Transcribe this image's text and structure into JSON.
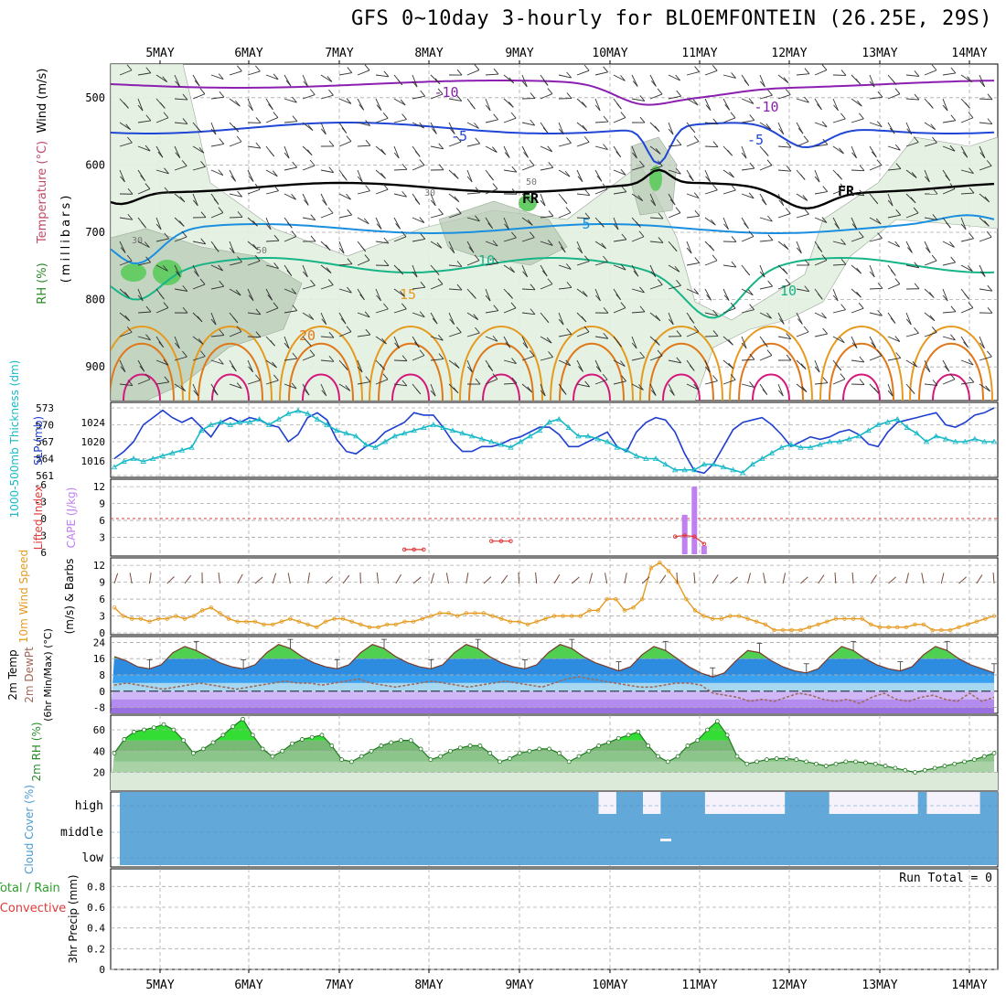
{
  "title": "GFS 0~10day 3-hourly for BLOEMFONTEIN (26.25E, 29S)",
  "chart_data": [
    {
      "panel": "upper-air",
      "type": "contour",
      "ylabel_parts": [
        "RH (%)",
        "Temperature (°C)",
        "Wind (m/s)"
      ],
      "ylabel_units": "(millibars)",
      "ylim": [
        950,
        450
      ],
      "yticks": [
        "500",
        "600",
        "700",
        "800",
        "900"
      ],
      "x": [
        "5MAY",
        "6MAY",
        "7MAY",
        "8MAY",
        "9MAY",
        "10MAY",
        "11MAY",
        "12MAY",
        "13MAY",
        "14MAY"
      ],
      "contour_labels": [
        "-10",
        "-10",
        "-5",
        "-5",
        "FR",
        "FR",
        "5",
        "10",
        "10",
        "15",
        "20",
        "30",
        "30",
        "50",
        "50"
      ],
      "colors": {
        "m10": "#8a1fb0",
        "m5": "#1f46d6",
        "fr": "#000000",
        "p5": "#1a8fe0",
        "p10": "#16b487",
        "p15": "#e59a20",
        "p20": "#e0781a",
        "p25": "#d4197c",
        "rh": "#dbebd8"
      }
    },
    {
      "panel": "thickness-slp",
      "type": "line",
      "ylabel_left": "1000-500mb Thickness (dm)",
      "ylabel_right": "SLP (mb)",
      "yticks_thickness": [
        "573",
        "570",
        "567",
        "564",
        "561"
      ],
      "yticks_slp": [
        "1024",
        "1020",
        "1016"
      ],
      "series": [
        {
          "name": "SLP (mb)",
          "color": "#1f3fd0",
          "values": [
            1016.5,
            1018,
            1020,
            1023.5,
            1025,
            1026.5,
            1025,
            1024,
            1025,
            1023,
            1021,
            1024,
            1025,
            1024,
            1025,
            1024.5,
            1023.5,
            1023,
            1020,
            1021.5,
            1025,
            1026,
            1024.5,
            1020.5,
            1018,
            1017.5,
            1019,
            1020,
            1022,
            1023,
            1024,
            1026,
            1025.5,
            1025.5,
            1023,
            1020,
            1018,
            1018,
            1019,
            1019,
            1019.5,
            1020.5,
            1021,
            1022,
            1023,
            1023,
            1021.5,
            1019,
            1019,
            1020,
            1021,
            1022,
            1019,
            1018,
            1022,
            1024,
            1025,
            1024.5,
            1022,
            1017.5,
            1014,
            1013.5,
            1015.5,
            1019,
            1022.5,
            1024,
            1024.5,
            1025,
            1023.5,
            1021.5,
            1019,
            1020,
            1021,
            1020.5,
            1021,
            1022,
            1022.5,
            1021.5,
            1019.5,
            1019,
            1022,
            1024,
            1024.5,
            1025,
            1025.5,
            1026,
            1023.5,
            1023,
            1024,
            1025.5,
            1026,
            1027
          ]
        },
        {
          "name": "Thickness (dm)",
          "color": "#17b9c8",
          "values": [
            562.5,
            563.5,
            564,
            563.5,
            564,
            564.5,
            565,
            565.5,
            566,
            569,
            570,
            570.5,
            570,
            570.5,
            570.5,
            571,
            570,
            571,
            572,
            572.5,
            572,
            571,
            570,
            569,
            568.5,
            568,
            566.5,
            566,
            567,
            568,
            568.5,
            569,
            569.5,
            570,
            569.5,
            569,
            568.5,
            568,
            567.5,
            567,
            566.5,
            566,
            567,
            568,
            569,
            570.5,
            571,
            569.5,
            568,
            568,
            567.5,
            567,
            566,
            565.5,
            564.5,
            564,
            564,
            563,
            562,
            562,
            562,
            563,
            563,
            562.5,
            562,
            561.5,
            563,
            564,
            565,
            566,
            566.5,
            566,
            566,
            566.5,
            567,
            567,
            567.5,
            568,
            569,
            570,
            570.5,
            571,
            569.5,
            568.5,
            567,
            568,
            567.5,
            567,
            567,
            567.5,
            567,
            567
          ]
        }
      ]
    },
    {
      "panel": "cape-lifted",
      "type": "bar",
      "ylabel_left": "Lifted Index",
      "ylabel_right": "CAPE (J/kg)",
      "yticks_cape": [
        "12",
        "9",
        "6",
        "3"
      ],
      "yticks_li": [
        "-6",
        "-3",
        "0",
        "3",
        "6"
      ],
      "x_indices": [
        59,
        60,
        61
      ],
      "cape_values": [
        7,
        12,
        1.5
      ],
      "lifted_index": [
        {
          "i": 30,
          "v": 5.5
        },
        {
          "i": 31,
          "v": 5.5
        },
        {
          "i": 32,
          "v": 5.5
        },
        {
          "i": 39,
          "v": 4
        },
        {
          "i": 40,
          "v": 4
        },
        {
          "i": 41,
          "v": 4
        },
        {
          "i": 58,
          "v": 3.2
        },
        {
          "i": 59,
          "v": 3
        },
        {
          "i": 60,
          "v": 3.2
        },
        {
          "i": 61,
          "v": 4.5
        }
      ],
      "colors": {
        "cape": "#c080f0",
        "li": "#e03a3a"
      }
    },
    {
      "panel": "wind",
      "type": "line",
      "ylabel_parts": [
        "10m Wind Speed",
        "(m/s) & Barbs"
      ],
      "yticks": [
        "12",
        "9",
        "6",
        "3",
        "0"
      ],
      "series": [
        {
          "name": "10m Wind Speed",
          "color": "#e59a20",
          "values": [
            4.5,
            3,
            2.5,
            2.5,
            2,
            2.5,
            2.5,
            3,
            2.5,
            3,
            4,
            4.5,
            3.5,
            2.5,
            2,
            2,
            2,
            1.5,
            1.5,
            2,
            2.5,
            2,
            1.5,
            1,
            2,
            2.5,
            2.5,
            2,
            1.5,
            1,
            1,
            1.5,
            1.5,
            2,
            2,
            2.5,
            3,
            3.5,
            3.5,
            3,
            3.5,
            3.5,
            3.5,
            3,
            2.5,
            2,
            2,
            1.5,
            2,
            2.5,
            3,
            3,
            3,
            3,
            4,
            4,
            6,
            6,
            4,
            4.5,
            6,
            11.5,
            12.5,
            11,
            9,
            6,
            4,
            3,
            2.5,
            2.5,
            3,
            3,
            2.5,
            2,
            1.5,
            0.5,
            0.5,
            0.5,
            0.5,
            1,
            1.5,
            2,
            2.5,
            2.5,
            2.5,
            2.5,
            1.5,
            1,
            1,
            1,
            1,
            1.5,
            1.5,
            0.5,
            0.5,
            0.5,
            1,
            1.5,
            2,
            2.5,
            3
          ]
        }
      ]
    },
    {
      "panel": "temperature",
      "type": "area",
      "ylabel_parts": [
        "2m Temp",
        "2m DewPt",
        "(6hr Min/Max) (°C)"
      ],
      "yticks": [
        "24",
        "16",
        "8",
        "0",
        "-8"
      ],
      "series": [
        {
          "name": "2m Temp",
          "color": "#30a030",
          "values": [
            17,
            15,
            12,
            11,
            13,
            19,
            22,
            20,
            17,
            14,
            12,
            11,
            13,
            19,
            23,
            21,
            17,
            14,
            12,
            11,
            13,
            19,
            23,
            21,
            17,
            14,
            12,
            11,
            13,
            19,
            23,
            21,
            17,
            14,
            12,
            11,
            13,
            19,
            23,
            21,
            17,
            14,
            12,
            10,
            12,
            18,
            22,
            20,
            16,
            12,
            9,
            7,
            9,
            15,
            20,
            19,
            15,
            12,
            10,
            9,
            11,
            17,
            22,
            20,
            16,
            13,
            11,
            10,
            12,
            18,
            22,
            20,
            16,
            13,
            11,
            9
          ]
        },
        {
          "name": "2m DewPt",
          "color": "#a06a5a",
          "values": [
            3,
            4,
            3,
            2,
            1,
            2,
            3,
            4,
            3,
            2,
            1,
            2,
            3,
            4,
            5,
            4,
            4,
            3,
            4,
            5,
            6,
            4,
            3,
            2,
            3,
            4,
            5,
            4,
            3,
            2,
            3,
            4,
            5,
            4,
            3,
            2,
            4,
            6,
            7,
            6,
            5,
            4,
            3,
            2,
            2,
            3,
            4,
            4,
            3,
            -1,
            -2,
            -3,
            -5,
            -4,
            -5,
            -3,
            -1,
            -2,
            -4,
            -5,
            -4,
            -6,
            -3,
            -1,
            -4,
            -5,
            -3,
            -2,
            -4,
            -5,
            -1,
            -5,
            -3
          ]
        }
      ]
    },
    {
      "panel": "rh",
      "type": "area",
      "ylabel": "2m RH (%)",
      "yticks": [
        "60",
        "40",
        "20"
      ],
      "series": [
        {
          "name": "2m RH",
          "color": "#22cc22",
          "values": [
            38,
            51,
            58,
            60,
            62,
            65,
            60,
            50,
            38,
            42,
            48,
            55,
            63,
            70,
            55,
            42,
            35,
            40,
            47,
            51,
            53,
            55,
            45,
            32,
            30,
            35,
            40,
            45,
            48,
            50,
            50,
            42,
            32,
            35,
            40,
            43,
            45,
            45,
            38,
            30,
            33,
            38,
            40,
            42,
            42,
            38,
            30,
            35,
            40,
            45,
            48,
            52,
            55,
            58,
            45,
            35,
            30,
            35,
            45,
            50,
            60,
            68,
            55,
            35,
            28,
            30,
            32,
            33,
            33,
            32,
            30,
            28,
            26,
            28,
            30,
            30,
            29,
            28,
            26,
            24,
            22,
            20,
            22,
            24,
            26,
            28,
            30,
            32,
            35,
            38
          ]
        }
      ],
      "bands": [
        "#cfe7cc",
        "#a9d3a6",
        "#8cc58a",
        "#77b975"
      ]
    },
    {
      "panel": "cloud",
      "type": "heatmap",
      "ylabel": "Cloud Cover (%)",
      "levels": [
        "high",
        "middle",
        "low"
      ],
      "color": "#62a8d8",
      "clear_color": "#f6f2fb",
      "high_clear_ranges": [
        [
          0,
          0.02
        ],
        [
          0.55,
          0.57
        ],
        [
          0.6,
          0.62
        ],
        [
          0.67,
          0.76
        ],
        [
          0.81,
          0.91
        ],
        [
          0.92,
          0.98
        ],
        [
          1.0,
          1.02
        ]
      ],
      "note": ""
    },
    {
      "panel": "precip",
      "type": "bar",
      "ylabel_parts": [
        "Total / Rain",
        "Convective",
        "3hr Precip (mm)"
      ],
      "yticks": [
        "0.8",
        "0.6",
        "0.4",
        "0.2",
        "0"
      ],
      "annotation": "Run Total = 0",
      "values": []
    }
  ],
  "xaxis": [
    "5MAY",
    "6MAY",
    "7MAY",
    "8MAY",
    "9MAY",
    "10MAY",
    "11MAY",
    "12MAY",
    "13MAY",
    "14MAY"
  ]
}
